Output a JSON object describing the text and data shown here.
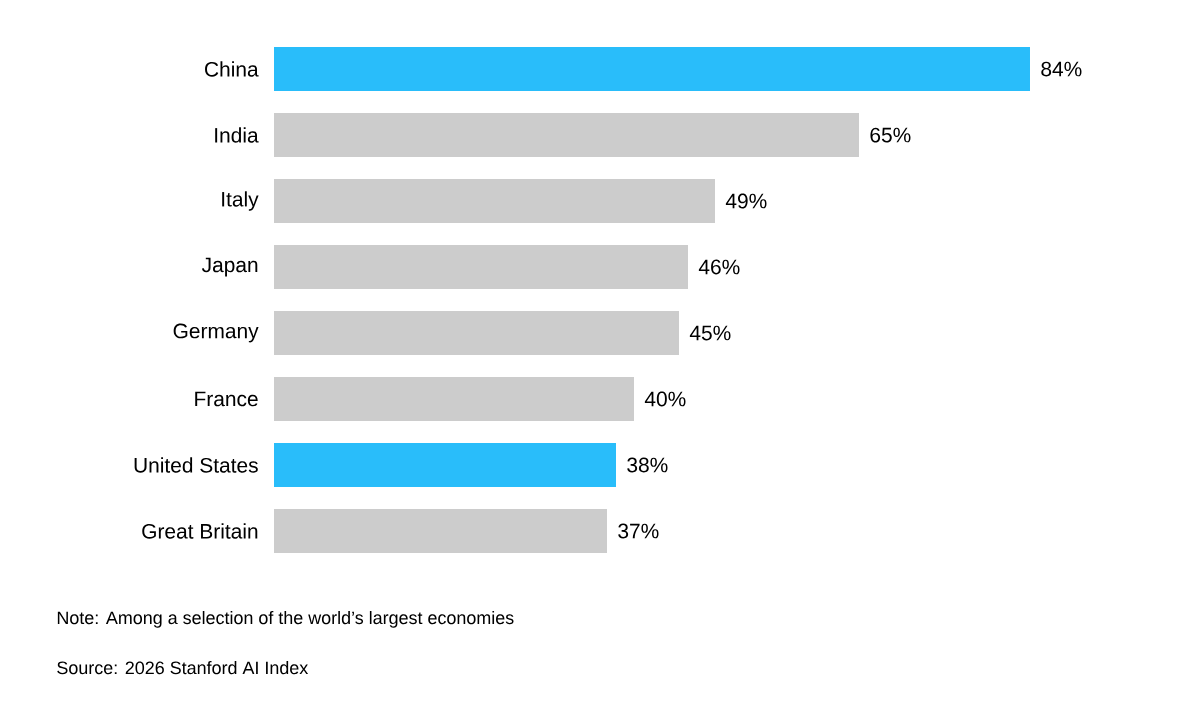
{
  "chart_data": {
    "type": "bar",
    "orientation": "horizontal",
    "categories": [
      "China",
      "India",
      "Italy",
      "Japan",
      "Germany",
      "France",
      "United States",
      "Great Britain"
    ],
    "values": [
      84,
      65,
      49,
      46,
      45,
      40,
      38,
      37
    ],
    "value_labels": [
      "84%",
      "65%",
      "49%",
      "46%",
      "45%",
      "40%",
      "38%",
      "37%"
    ],
    "colors": [
      "#29bdfa",
      "#cccccc",
      "#cccccc",
      "#cccccc",
      "#cccccc",
      "#cccccc",
      "#29bdfa",
      "#cccccc"
    ],
    "annotations": [
      "Note: Among a selection of the world’s largest economies",
      "Source: 2026 Stanford AI Index"
    ]
  }
}
